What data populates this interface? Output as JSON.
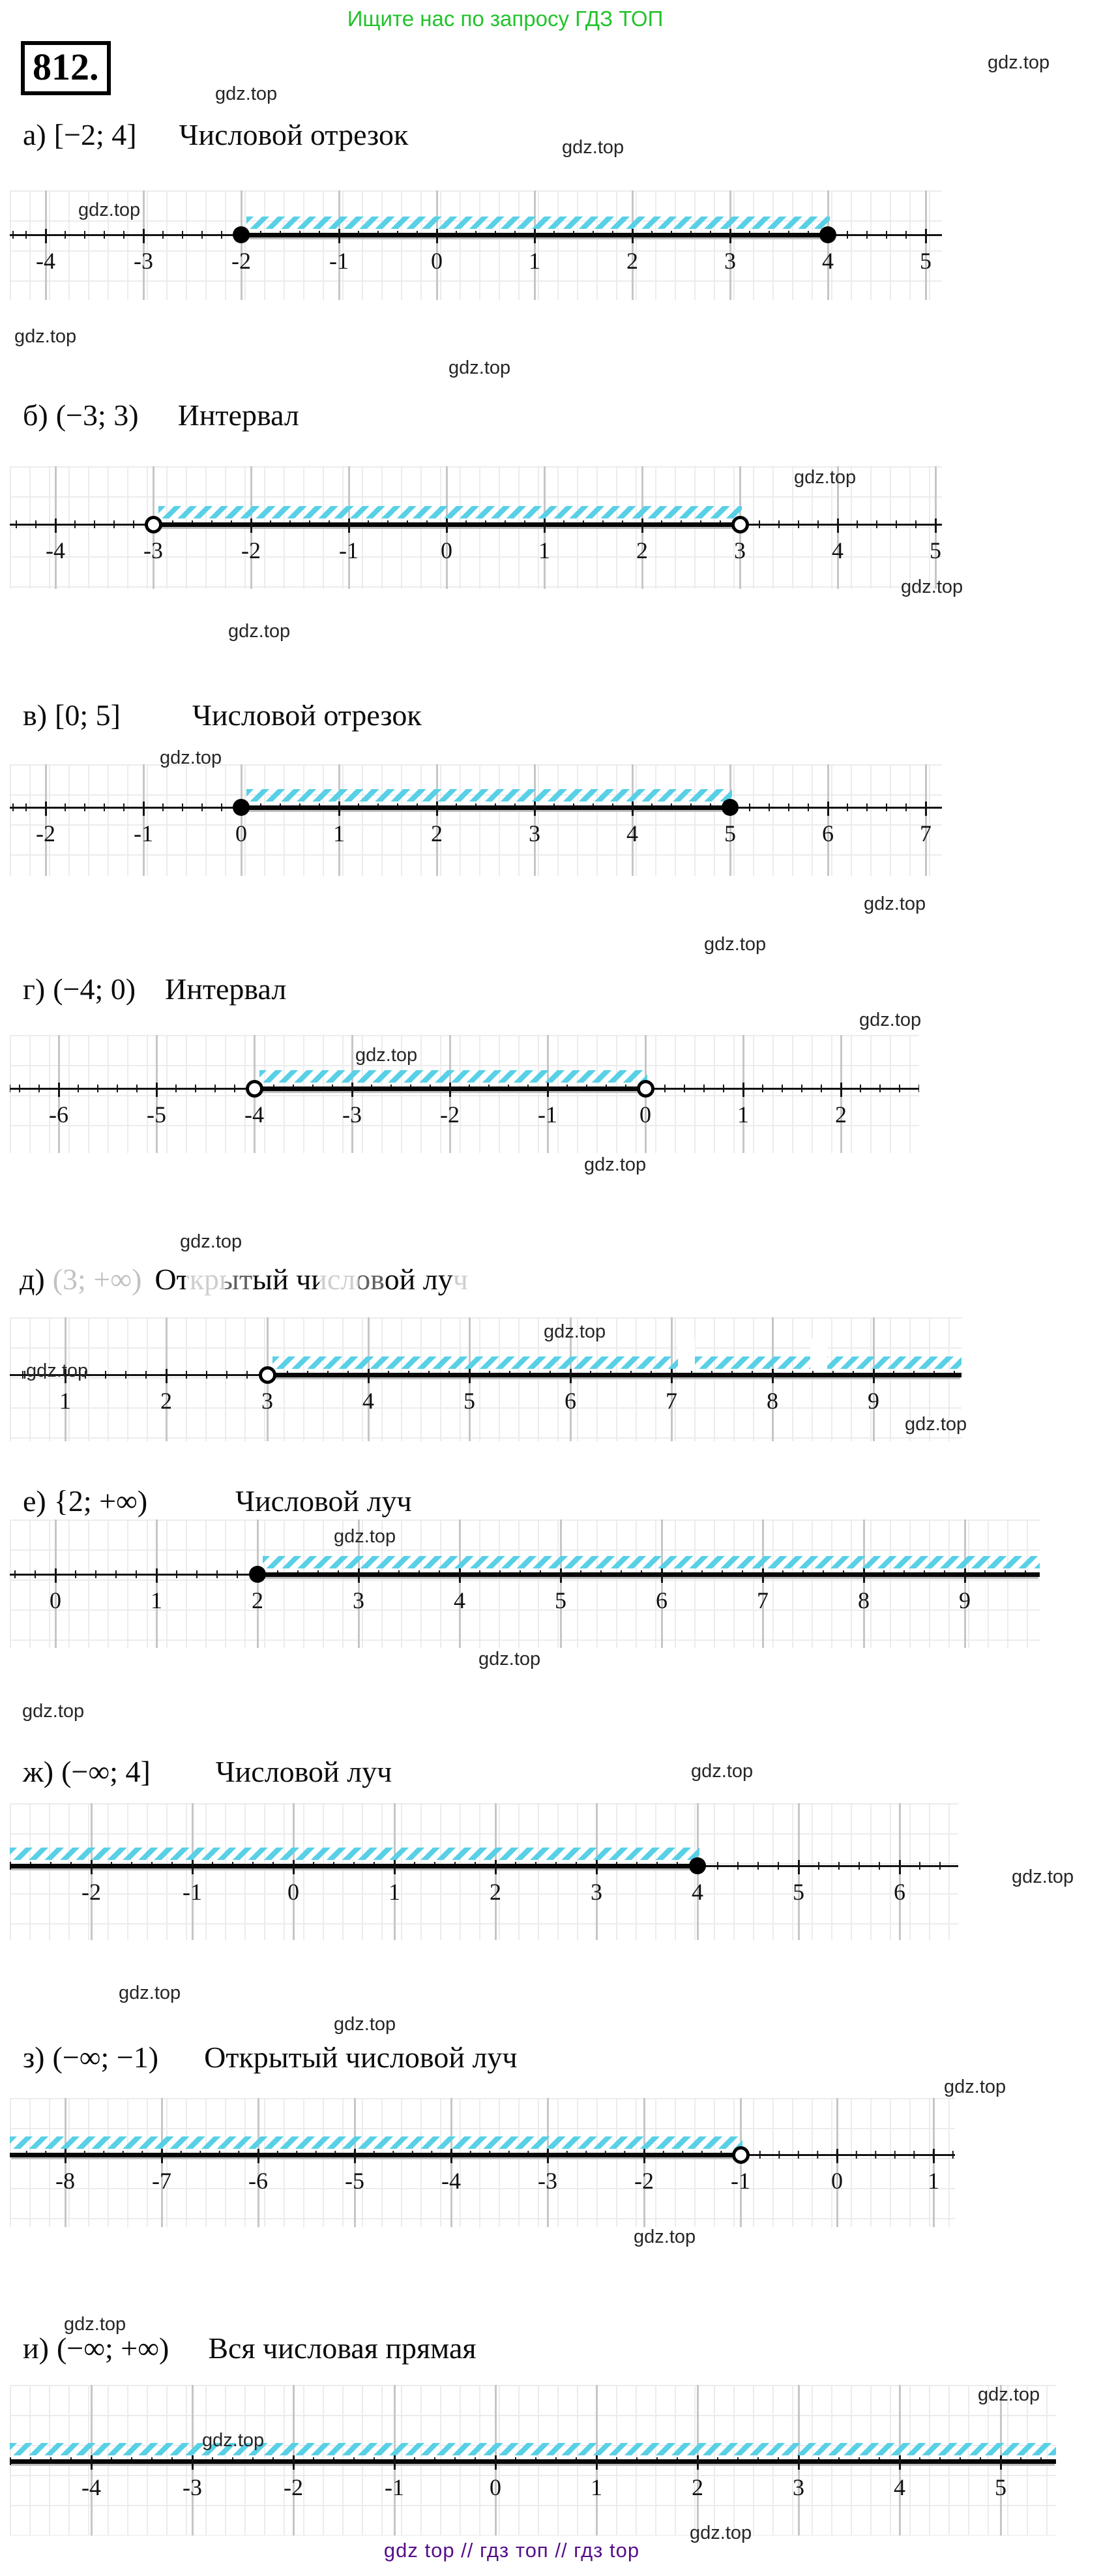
{
  "page": {
    "top_banner": "Ищите нас по запросу ГДЗ ТОП",
    "problem_number": "812.",
    "watermark": "gdz.top",
    "footer": "gdz top  //  гдз топ  //  гдз top",
    "colors": {
      "banner_green": "#22c32c",
      "hatch_cyan": "#58d0e6",
      "footer_purple": "#560e8a",
      "grid_gray": "#ececec",
      "unit_line_gray": "#c6c6c6"
    }
  },
  "sections": [
    {
      "id": "a",
      "label": "а)",
      "interval": "[−2; 4]",
      "title": "Числовой отрезок",
      "faded": false,
      "ticks": [
        "-4",
        "-3",
        "-2",
        "-1",
        "0",
        "1",
        "2",
        "3",
        "4",
        "5"
      ],
      "points": [
        {
          "value": -2,
          "type": "closed"
        },
        {
          "value": 4,
          "type": "closed"
        }
      ],
      "shade": {
        "from": -2,
        "to": 4
      }
    },
    {
      "id": "b",
      "label": "б)",
      "interval": "(−3; 3)",
      "title": "Интервал",
      "faded": false,
      "ticks": [
        "-4",
        "-3",
        "-2",
        "-1",
        "0",
        "1",
        "2",
        "3",
        "4",
        "5"
      ],
      "points": [
        {
          "value": -3,
          "type": "open"
        },
        {
          "value": 3,
          "type": "open"
        }
      ],
      "shade": {
        "from": -3,
        "to": 3
      }
    },
    {
      "id": "v",
      "label": "в)",
      "interval": "[0; 5]",
      "title": "Числовой отрезок",
      "faded": false,
      "ticks": [
        "-2",
        "-1",
        "0",
        "1",
        "2",
        "3",
        "4",
        "5",
        "6",
        "7"
      ],
      "points": [
        {
          "value": 0,
          "type": "closed"
        },
        {
          "value": 5,
          "type": "closed"
        }
      ],
      "shade": {
        "from": 0,
        "to": 5
      }
    },
    {
      "id": "g",
      "label": "г)",
      "interval": "(−4; 0)",
      "title": "Интервал",
      "faded": false,
      "ticks": [
        "-6",
        "-5",
        "-4",
        "-3",
        "-2",
        "-1",
        "0",
        "1",
        "2"
      ],
      "points": [
        {
          "value": -4,
          "type": "open"
        },
        {
          "value": 0,
          "type": "open"
        }
      ],
      "shade": {
        "from": -4,
        "to": 0
      }
    },
    {
      "id": "d",
      "label": "д)",
      "interval": "(3; +∞)",
      "title": "Открытый числовой луч",
      "faded": true,
      "ticks": [
        "1",
        "2",
        "3",
        "4",
        "5",
        "6",
        "7",
        "8",
        "9"
      ],
      "points": [
        {
          "value": 3,
          "type": "open"
        }
      ],
      "shade": {
        "from": 3,
        "to": "+inf"
      }
    },
    {
      "id": "e",
      "label": "е)",
      "interval": "{2; +∞)",
      "title": "Числовой луч",
      "faded": false,
      "ticks": [
        "0",
        "1",
        "2",
        "3",
        "4",
        "5",
        "6",
        "7",
        "8",
        "9"
      ],
      "points": [
        {
          "value": 2,
          "type": "closed"
        }
      ],
      "shade": {
        "from": 2,
        "to": "+inf"
      }
    },
    {
      "id": "zh",
      "label": "ж)",
      "interval": "(−∞; 4]",
      "title": "Числовой луч",
      "faded": false,
      "ticks": [
        "-2",
        "-1",
        "0",
        "1",
        "2",
        "3",
        "4",
        "5",
        "6"
      ],
      "points": [
        {
          "value": 4,
          "type": "closed"
        }
      ],
      "shade": {
        "from": "-inf",
        "to": 4
      }
    },
    {
      "id": "z",
      "label": "з)",
      "interval": "(−∞; −1)",
      "title": "Открытый числовой луч",
      "faded": false,
      "ticks": [
        "-8",
        "-7",
        "-6",
        "-5",
        "-4",
        "-3",
        "-2",
        "-1",
        "0",
        "1"
      ],
      "points": [
        {
          "value": -1,
          "type": "open"
        }
      ],
      "shade": {
        "from": "-inf",
        "to": -1
      }
    },
    {
      "id": "i",
      "label": "и)",
      "interval": "(−∞; +∞)",
      "title": "Вся числовая прямая",
      "faded": false,
      "ticks": [
        "-4",
        "-3",
        "-2",
        "-1",
        "0",
        "1",
        "2",
        "3",
        "4",
        "5"
      ],
      "points": [],
      "shade": {
        "from": "-inf",
        "to": "+inf"
      }
    }
  ]
}
